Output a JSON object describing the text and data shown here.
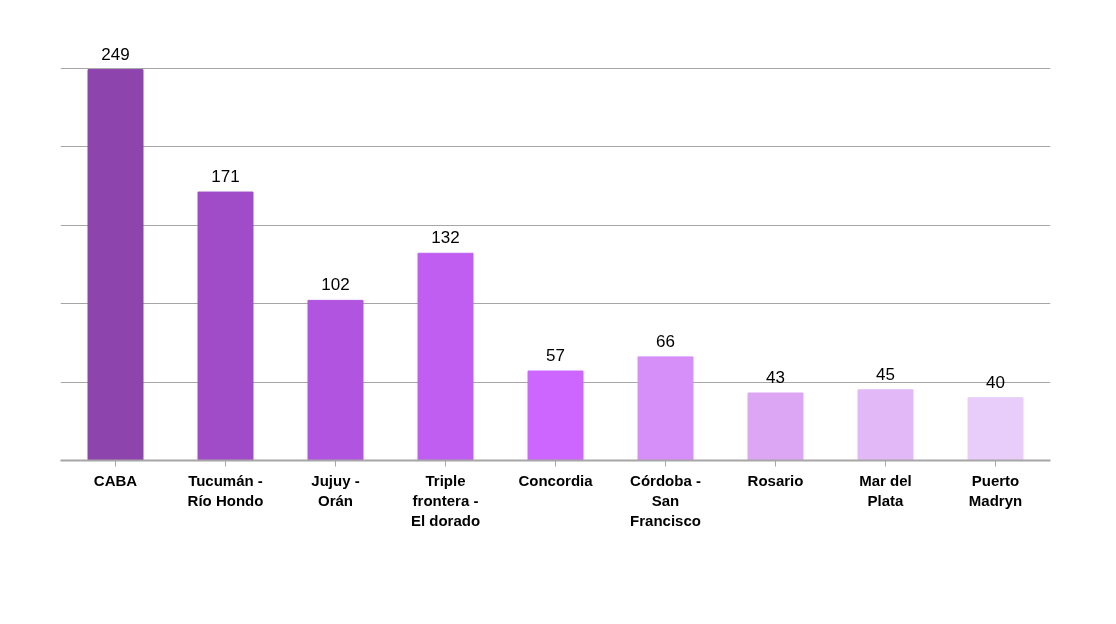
{
  "chart_data": {
    "type": "bar",
    "categories": [
      "CABA",
      "Tucumán - Río Hondo",
      "Jujuy - Orán",
      "Triple frontera - El dorado",
      "Concordia",
      "Córdoba - San Francisco",
      "Rosario",
      "Mar del Plata",
      "Puerto Madryn"
    ],
    "values": [
      249,
      171,
      102,
      132,
      57,
      66,
      43,
      45,
      40
    ],
    "colors": [
      "#8e44ad",
      "#a04cc8",
      "#b155e0",
      "#bf5ef0",
      "#cc66ff",
      "#d68ef9",
      "#dca6f5",
      "#e2b8f7",
      "#e8ccfa"
    ],
    "data_labels": true,
    "grid": "y",
    "tick_labels": "x"
  }
}
